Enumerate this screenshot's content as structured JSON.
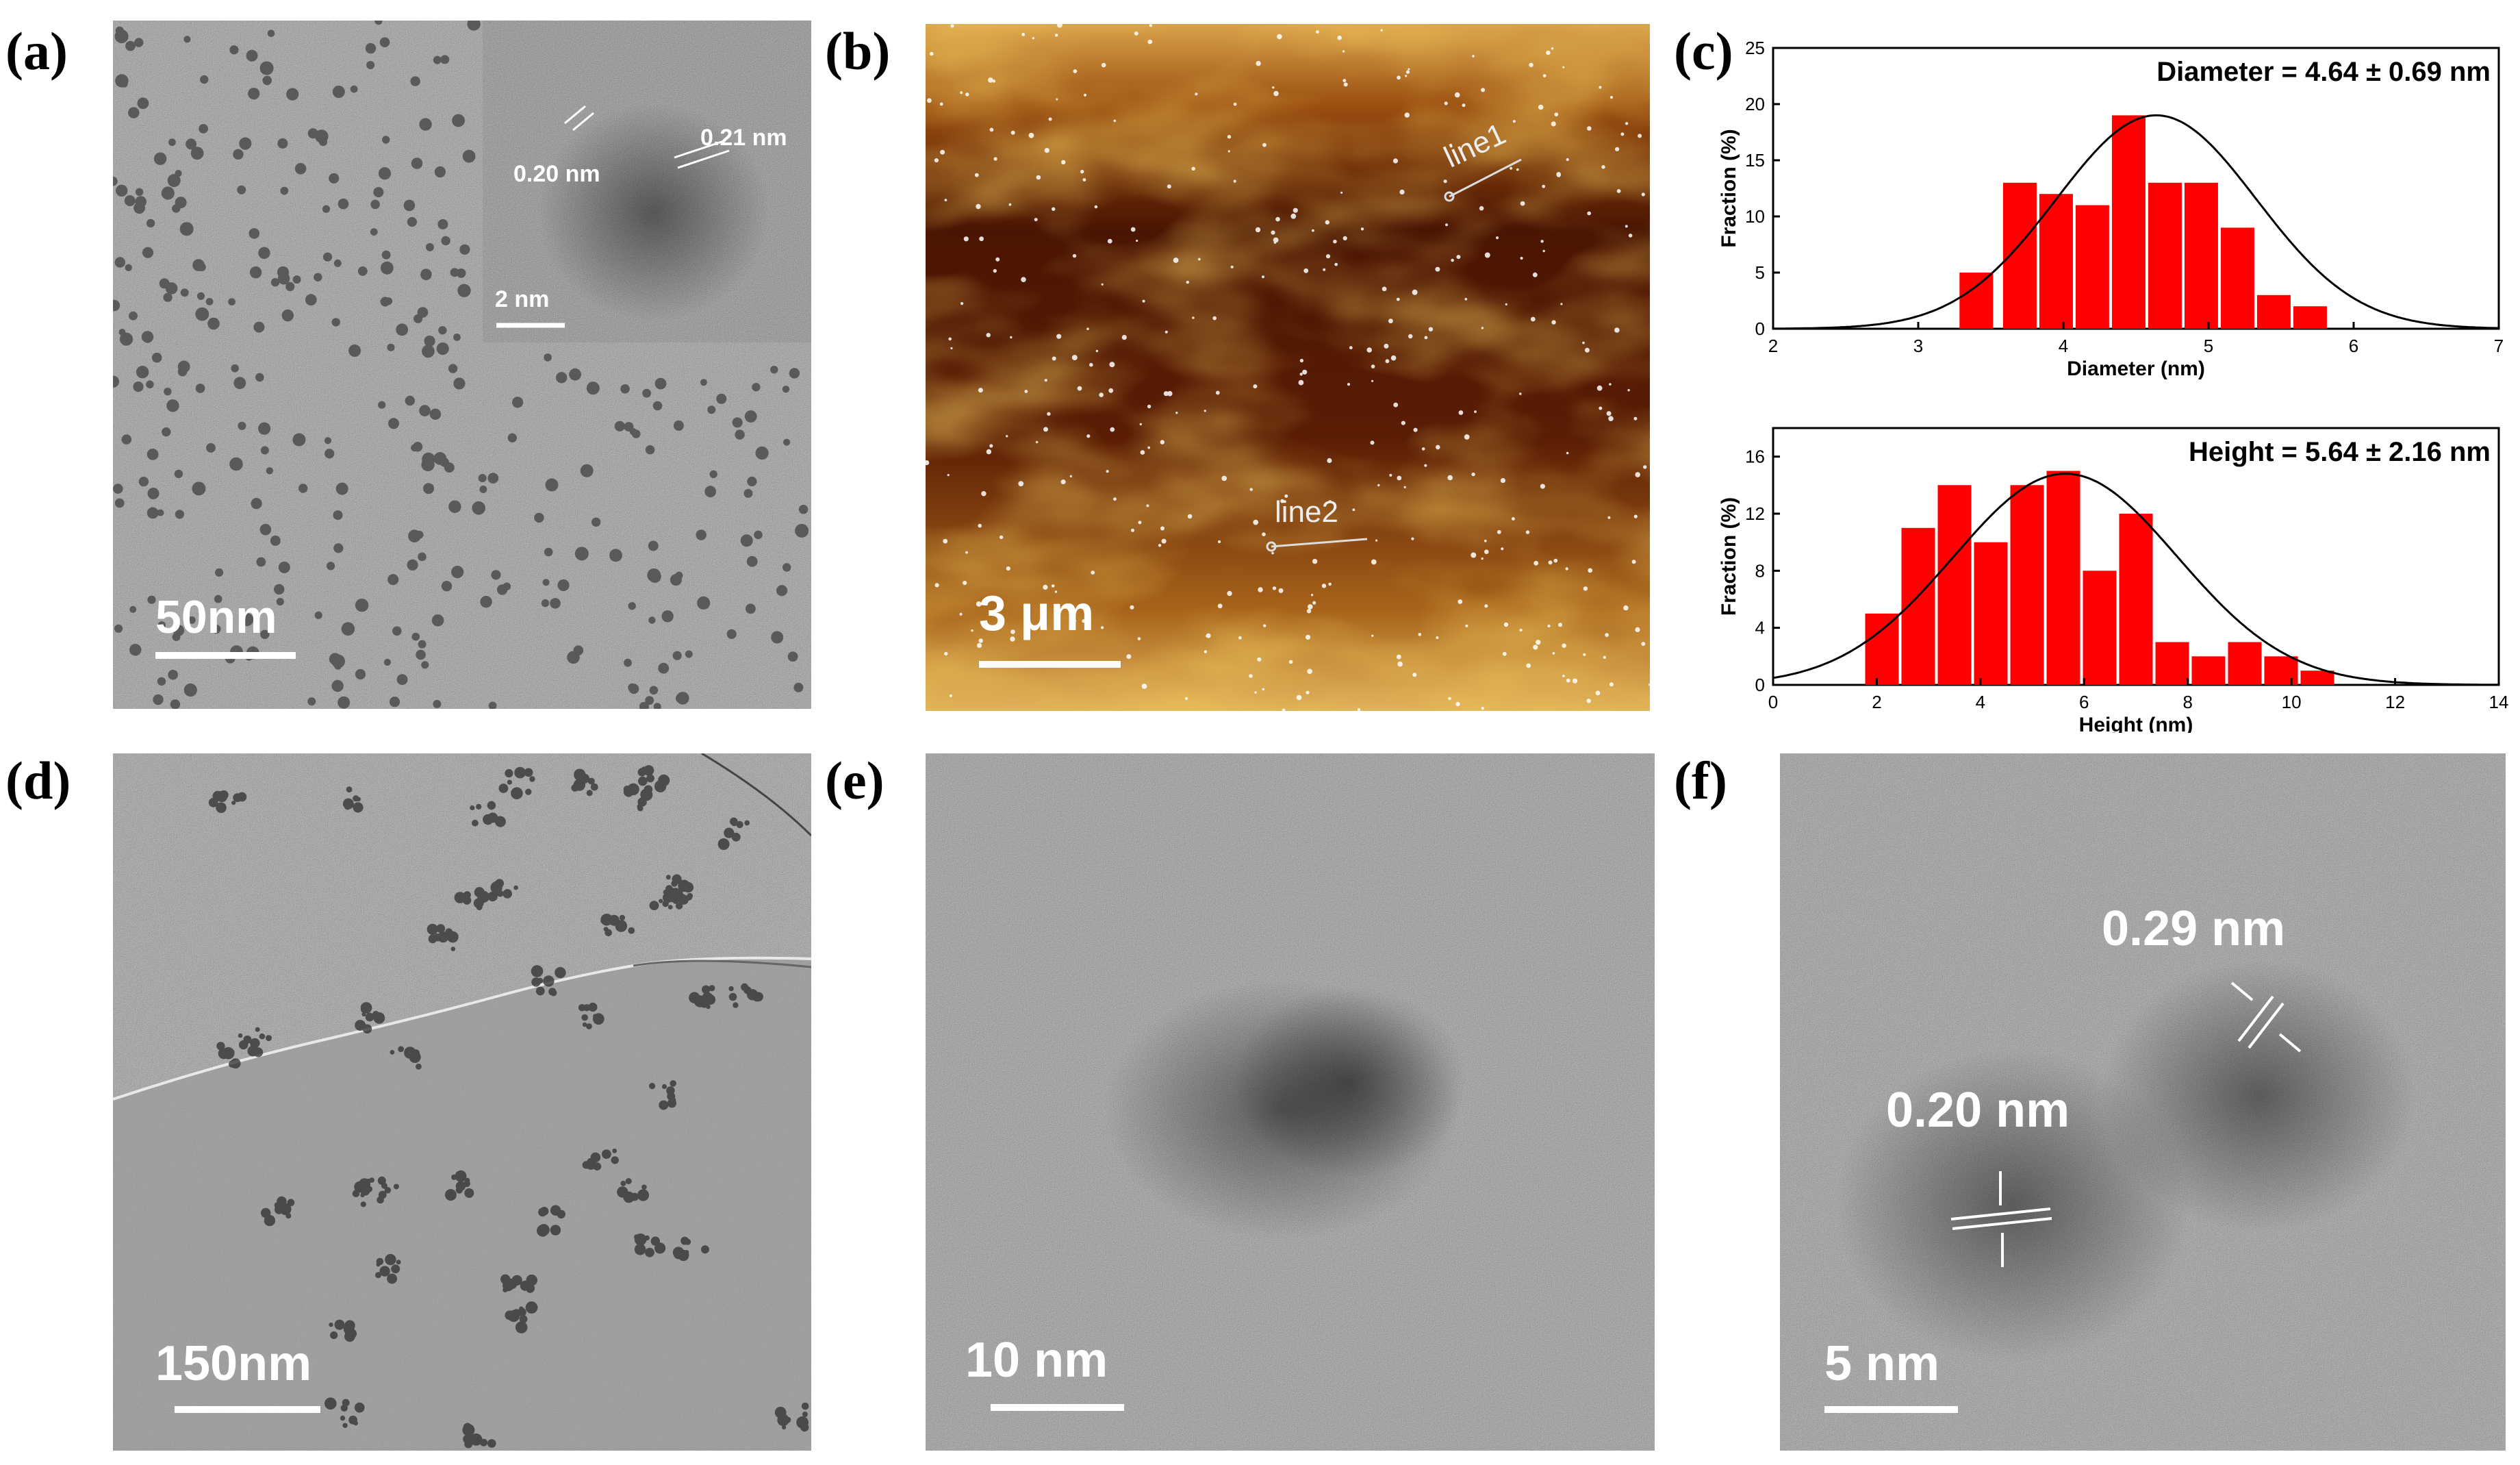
{
  "figure": {
    "labels": {
      "a": "(a)",
      "b": "(b)",
      "c": "(c)",
      "d": "(d)",
      "e": "(e)",
      "f": "(f)"
    },
    "panel_a": {
      "scale_bar": "50nm",
      "inset_scale_bar": "2 nm",
      "inset_spacing_1": "0.20 nm",
      "inset_spacing_2": "0.21 nm"
    },
    "panel_b": {
      "scale_bar": "3 μm",
      "line1": "line1",
      "line2": "line2"
    },
    "panel_d": {
      "scale_bar": "150nm"
    },
    "panel_e": {
      "scale_bar": "10 nm"
    },
    "panel_f": {
      "scale_bar": "5 nm",
      "spacing_1": "0.29 nm",
      "spacing_2": "0.20 nm"
    }
  },
  "chart_data": [
    {
      "type": "bar",
      "annotation": "Diameter = 4.64 ± 0.69 nm",
      "xlabel": "Diameter (nm)",
      "ylabel": "Fraction (%)",
      "xlim": [
        2,
        7
      ],
      "ylim": [
        0,
        25
      ],
      "xticks": [
        2,
        3,
        4,
        5,
        6,
        7
      ],
      "yticks": [
        0,
        5,
        10,
        15,
        20,
        25
      ],
      "bin_width": 0.25,
      "x": [
        3.4,
        3.7,
        3.95,
        4.2,
        4.45,
        4.7,
        4.95,
        5.2,
        5.45,
        5.7,
        5.95
      ],
      "values": [
        5,
        13,
        12,
        11,
        19,
        13,
        13,
        9,
        3,
        2,
        0
      ],
      "fit": {
        "type": "gaussian",
        "mean": 4.64,
        "sigma": 0.69,
        "peak": 19
      }
    },
    {
      "type": "bar",
      "annotation": "Height = 5.64 ± 2.16 nm",
      "xlabel": "Height (nm)",
      "ylabel": "Fraction (%)",
      "xlim": [
        0,
        14
      ],
      "ylim": [
        0,
        18
      ],
      "xticks": [
        0,
        2,
        4,
        6,
        8,
        10,
        12,
        14
      ],
      "yticks": [
        0,
        4,
        8,
        12,
        16
      ],
      "bin_width": 0.7,
      "x": [
        2.1,
        2.8,
        3.5,
        4.2,
        4.9,
        5.6,
        6.3,
        7.0,
        7.7,
        8.4,
        9.1,
        9.8,
        10.5,
        11.2,
        11.9
      ],
      "values": [
        5,
        11,
        14,
        10,
        14,
        15,
        8,
        12,
        3,
        2,
        3,
        2,
        1,
        0,
        0
      ],
      "fit": {
        "type": "gaussian",
        "mean": 5.64,
        "sigma": 2.16,
        "peak": 14.8
      }
    }
  ]
}
